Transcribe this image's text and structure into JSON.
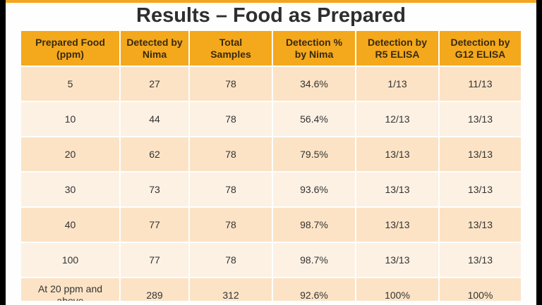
{
  "title": "Results – Food as Prepared",
  "table": {
    "headers": [
      [
        "Prepared Food",
        "(ppm)"
      ],
      [
        "Detected by",
        "Nima"
      ],
      [
        "Total",
        "Samples"
      ],
      [
        "Detection %",
        "by Nima"
      ],
      [
        "Detection by",
        "R5 ELISA"
      ],
      [
        "Detection by",
        "G12 ELISA"
      ]
    ],
    "rows": [
      [
        [
          "5"
        ],
        [
          "27"
        ],
        [
          "78"
        ],
        [
          "34.6%"
        ],
        [
          "1/13"
        ],
        [
          "11/13"
        ]
      ],
      [
        [
          "10"
        ],
        [
          "44"
        ],
        [
          "78"
        ],
        [
          "56.4%"
        ],
        [
          "12/13"
        ],
        [
          "13/13"
        ]
      ],
      [
        [
          "20"
        ],
        [
          "62"
        ],
        [
          "78"
        ],
        [
          "79.5%"
        ],
        [
          "13/13"
        ],
        [
          "13/13"
        ]
      ],
      [
        [
          "30"
        ],
        [
          "73"
        ],
        [
          "78"
        ],
        [
          "93.6%"
        ],
        [
          "13/13"
        ],
        [
          "13/13"
        ]
      ],
      [
        [
          "40"
        ],
        [
          "77"
        ],
        [
          "78"
        ],
        [
          "98.7%"
        ],
        [
          "13/13"
        ],
        [
          "13/13"
        ]
      ],
      [
        [
          "100"
        ],
        [
          "77"
        ],
        [
          "78"
        ],
        [
          "98.7%"
        ],
        [
          "13/13"
        ],
        [
          "13/13"
        ]
      ],
      [
        [
          "At 20 ppm and",
          "above"
        ],
        [
          "289"
        ],
        [
          "312"
        ],
        [
          "92.6%"
        ],
        [
          "100%"
        ],
        [
          "100%"
        ]
      ]
    ]
  },
  "colors": {
    "accent": "#f4a81c",
    "row_odd": "#fce3c6",
    "row_even": "#fdf1e3"
  }
}
